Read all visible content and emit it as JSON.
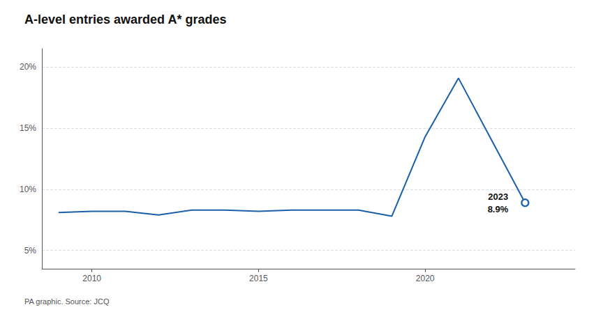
{
  "chart_data": {
    "type": "line",
    "title": "A-level entries awarded A* grades",
    "source": "PA graphic. Source: JCQ",
    "x": [
      2009,
      2010,
      2011,
      2012,
      2013,
      2014,
      2015,
      2016,
      2017,
      2018,
      2019,
      2020,
      2021,
      2022,
      2023
    ],
    "values": [
      8.1,
      8.2,
      8.2,
      7.9,
      8.3,
      8.3,
      8.2,
      8.3,
      8.3,
      8.3,
      7.8,
      14.3,
      19.1,
      14.0,
      8.9
    ],
    "color": "#1a5fa8",
    "xlim": [
      2008.5,
      2024.5
    ],
    "xticks": [
      2010,
      2015,
      2020
    ],
    "ylim": [
      3.5,
      21.5
    ],
    "yticks": [
      {
        "value": 5,
        "label": "5%"
      },
      {
        "value": 10,
        "label": "10%"
      },
      {
        "value": 15,
        "label": "15%"
      },
      {
        "value": 20,
        "label": "20%"
      }
    ],
    "annotation": {
      "x": 2023,
      "y": 8.9,
      "text": [
        "2023",
        "8.9%"
      ]
    },
    "grid": true
  }
}
